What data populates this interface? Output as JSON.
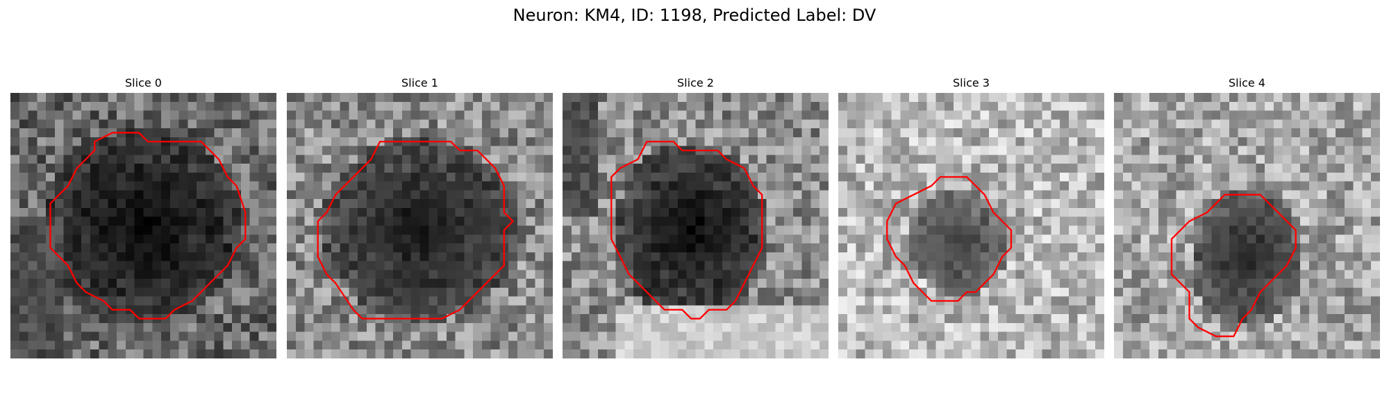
{
  "figure": {
    "title": "Neuron: KM4, ID: 1198, Predicted Label: DV"
  },
  "panels": [
    {
      "title": "Slice 0",
      "contour": [
        [
          9.5,
          5.5
        ],
        [
          11.5,
          4.5
        ],
        [
          14.5,
          4.5
        ],
        [
          15.5,
          5.5
        ],
        [
          21.5,
          5.5
        ],
        [
          23.5,
          7.5
        ],
        [
          24.5,
          9.5
        ],
        [
          25.5,
          10.5
        ],
        [
          26.5,
          13.5
        ],
        [
          26.5,
          16.5
        ],
        [
          25.5,
          17.5
        ],
        [
          24.5,
          19.5
        ],
        [
          22.5,
          21.5
        ],
        [
          20.5,
          23.5
        ],
        [
          18.5,
          24.5
        ],
        [
          17.5,
          25.5
        ],
        [
          14.5,
          25.5
        ],
        [
          13.5,
          24.5
        ],
        [
          11.5,
          24.5
        ],
        [
          10.5,
          23.5
        ],
        [
          8.5,
          22.5
        ],
        [
          7.5,
          21.5
        ],
        [
          6.5,
          19.5
        ],
        [
          5.5,
          18.5
        ],
        [
          4.5,
          17.5
        ],
        [
          4.5,
          12.5
        ],
        [
          5.5,
          11.5
        ],
        [
          6.5,
          10.5
        ],
        [
          7.5,
          8.5
        ],
        [
          9.5,
          6.5
        ]
      ]
    },
    {
      "title": "Slice 1",
      "contour": [
        [
          10.5,
          5.5
        ],
        [
          18.5,
          5.5
        ],
        [
          19.5,
          6.5
        ],
        [
          21.5,
          6.5
        ],
        [
          23.5,
          8.5
        ],
        [
          24.5,
          10.5
        ],
        [
          24.5,
          13.5
        ],
        [
          25.5,
          14.5
        ],
        [
          24.5,
          15.5
        ],
        [
          24.5,
          19.5
        ],
        [
          23.5,
          20.5
        ],
        [
          22.5,
          21.5
        ],
        [
          20.5,
          23.5
        ],
        [
          19.5,
          24.5
        ],
        [
          17.5,
          25.5
        ],
        [
          8.5,
          25.5
        ],
        [
          7.5,
          24.5
        ],
        [
          5.5,
          21.5
        ],
        [
          4.5,
          20.5
        ],
        [
          3.5,
          18.5
        ],
        [
          3.5,
          14.5
        ],
        [
          4.5,
          13.5
        ],
        [
          5.5,
          11.5
        ],
        [
          7.5,
          9.5
        ],
        [
          9.5,
          7.5
        ]
      ]
    },
    {
      "title": "Slice 2",
      "contour": [
        [
          9.5,
          5.5
        ],
        [
          12.5,
          5.5
        ],
        [
          13.5,
          6.5
        ],
        [
          17.5,
          6.5
        ],
        [
          18.5,
          7.5
        ],
        [
          20.5,
          8.5
        ],
        [
          21.5,
          10.5
        ],
        [
          22.5,
          11.5
        ],
        [
          22.5,
          17.5
        ],
        [
          21.5,
          19.5
        ],
        [
          20.5,
          21.5
        ],
        [
          19.5,
          23.5
        ],
        [
          18.5,
          24.5
        ],
        [
          16.5,
          24.5
        ],
        [
          15.5,
          25.5
        ],
        [
          14.5,
          25.5
        ],
        [
          13.5,
          24.5
        ],
        [
          11.5,
          24.5
        ],
        [
          10.5,
          23.5
        ],
        [
          9.5,
          22.5
        ],
        [
          7.5,
          20.5
        ],
        [
          6.5,
          18.5
        ],
        [
          5.5,
          16.5
        ],
        [
          5.5,
          9.5
        ],
        [
          6.5,
          8.5
        ],
        [
          8.5,
          7.5
        ]
      ]
    },
    {
      "title": "Slice 3",
      "contour": [
        [
          11.5,
          9.5
        ],
        [
          14.5,
          9.5
        ],
        [
          16.5,
          11.5
        ],
        [
          17.5,
          13.5
        ],
        [
          18.5,
          14.5
        ],
        [
          19.5,
          15.5
        ],
        [
          19.5,
          17.5
        ],
        [
          18.5,
          18.5
        ],
        [
          17.5,
          20.5
        ],
        [
          16.5,
          21.5
        ],
        [
          15.5,
          22.5
        ],
        [
          14.5,
          22.5
        ],
        [
          13.5,
          23.5
        ],
        [
          10.5,
          23.5
        ],
        [
          9.5,
          22.5
        ],
        [
          8.5,
          21.5
        ],
        [
          7.5,
          19.5
        ],
        [
          6.5,
          18.5
        ],
        [
          5.5,
          16.5
        ],
        [
          5.5,
          14.5
        ],
        [
          6.5,
          12.5
        ],
        [
          8.5,
          11.5
        ],
        [
          10.5,
          10.5
        ]
      ]
    },
    {
      "title": "Slice 4",
      "contour": [
        [
          12.5,
          11.5
        ],
        [
          16.5,
          11.5
        ],
        [
          17.5,
          12.5
        ],
        [
          19.5,
          14.5
        ],
        [
          20.5,
          15.5
        ],
        [
          20.5,
          17.5
        ],
        [
          19.5,
          19.5
        ],
        [
          18.5,
          20.5
        ],
        [
          17.5,
          21.5
        ],
        [
          16.5,
          22.5
        ],
        [
          15.5,
          24.5
        ],
        [
          14.5,
          25.5
        ],
        [
          13.5,
          27.5
        ],
        [
          11.5,
          27.5
        ],
        [
          9.5,
          26.5
        ],
        [
          8.5,
          25.5
        ],
        [
          8.5,
          22.5
        ],
        [
          7.5,
          21.5
        ],
        [
          6.5,
          20.5
        ],
        [
          6.5,
          16.5
        ],
        [
          7.5,
          15.5
        ],
        [
          8.5,
          14.5
        ],
        [
          10.5,
          13.5
        ],
        [
          11.5,
          12.5
        ]
      ]
    }
  ],
  "colors": {
    "contour": "#ff0000",
    "colormap": "gray"
  }
}
